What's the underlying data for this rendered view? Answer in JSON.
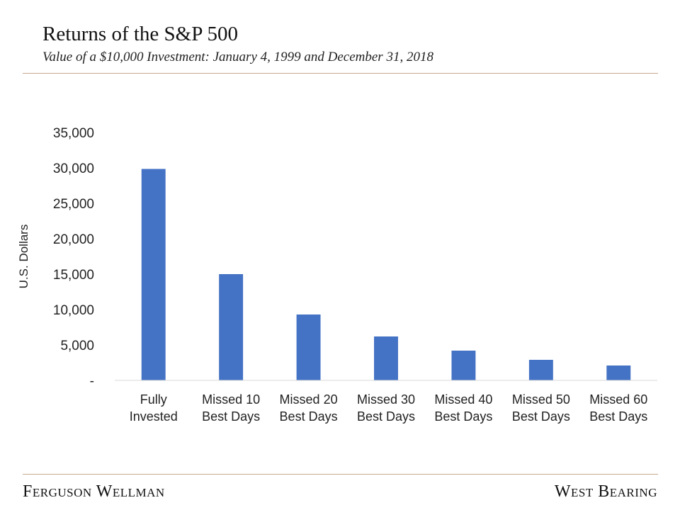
{
  "header": {
    "title": "Returns of the S&P 500",
    "subtitle": "Value of a $10,000 Investment: January 4, 1999 and December 31, 2018"
  },
  "footer": {
    "left": "Ferguson Wellman",
    "right": "West Bearing"
  },
  "colors": {
    "bar": "#4472c4",
    "rule": "#c9a88e"
  },
  "chart_data": {
    "type": "bar",
    "title": "Returns of the S&P 500",
    "subtitle": "Value of a $10,000 Investment: January 4, 1999 and December 31, 2018",
    "xlabel": "",
    "ylabel": "U.S. Dollars",
    "ylim": [
      0,
      35000
    ],
    "yticks": [
      0,
      5000,
      10000,
      15000,
      20000,
      25000,
      30000,
      35000
    ],
    "ytick_labels": [
      "-",
      "5,000",
      "10,000",
      "15,000",
      "20,000",
      "25,000",
      "30,000",
      "35,000"
    ],
    "categories": [
      [
        "Fully",
        "Invested"
      ],
      [
        "Missed 10",
        "Best Days"
      ],
      [
        "Missed 20",
        "Best Days"
      ],
      [
        "Missed 30",
        "Best Days"
      ],
      [
        "Missed 40",
        "Best Days"
      ],
      [
        "Missed 50",
        "Best Days"
      ],
      [
        "Missed 60",
        "Best Days"
      ]
    ],
    "values": [
      29850,
      15000,
      9300,
      6200,
      4200,
      2900,
      2100
    ],
    "grid": false,
    "legend": "none"
  }
}
